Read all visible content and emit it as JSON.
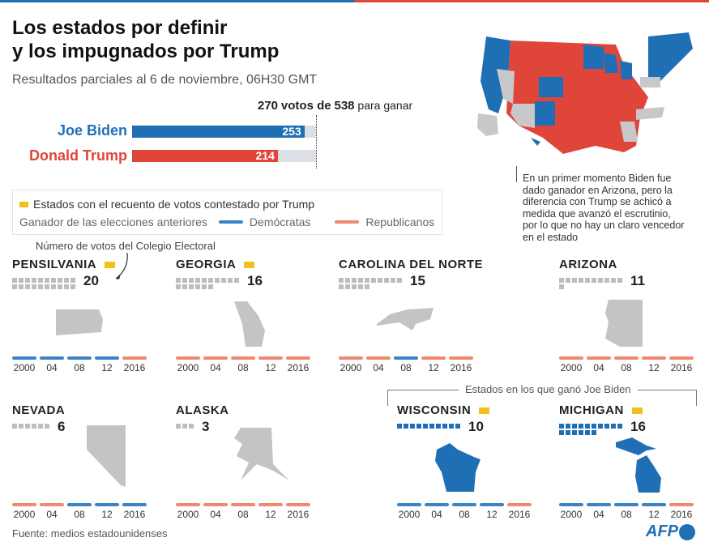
{
  "header": {
    "title_line1": "Los estados por definir",
    "title_line2": "y los impugnados por Trump",
    "subtitle": "Resultados parciales al 6 de noviembre, 06H30 GMT"
  },
  "chart_data": {
    "type": "bar",
    "title": "270 votos de 538 para ganar",
    "goal_number": "270",
    "goal_mid": "votos de",
    "goal_total": "538",
    "goal_suffix": "para ganar",
    "xlim": [
      0,
      270
    ],
    "categories": [
      "Joe Biden",
      "Donald Trump"
    ],
    "values": [
      253,
      214
    ],
    "value_labels": [
      "253",
      "214"
    ],
    "colors": [
      "#1f6fb5",
      "#e0453a"
    ]
  },
  "legend": {
    "contested": "Estados con el recuento de votos contestado por Trump",
    "previous_winner": "Ganador de las elecciones anteriores",
    "dem": "Demócratas",
    "rep": "Republicanos",
    "dem_color": "#3b84c4",
    "rep_color": "#ef8a70",
    "contested_color": "#f2c01a"
  },
  "electoral_note": "Número de votos del Colegio Electoral",
  "annotation": "En un primer momento Biden fue dado ganador en Arizona, pero la diferencia con Trump se achicó a medida que avanzó el escrutinio, por lo que no hay un claro vencedor en el estado",
  "biden_states_label": "Estados en los que ganó Joe Biden",
  "years": [
    "2000",
    "04",
    "08",
    "12",
    "2016"
  ],
  "states": [
    {
      "name": "Pensilvania",
      "votes": "20",
      "contested": true,
      "won_biden": false,
      "history": [
        "D",
        "D",
        "D",
        "D",
        "R"
      ]
    },
    {
      "name": "Georgia",
      "votes": "16",
      "contested": true,
      "won_biden": false,
      "history": [
        "R",
        "R",
        "R",
        "R",
        "R"
      ]
    },
    {
      "name": "Carolina del Norte",
      "votes": "15",
      "contested": false,
      "won_biden": false,
      "history": [
        "R",
        "R",
        "D",
        "R",
        "R"
      ]
    },
    {
      "name": "Arizona",
      "votes": "11",
      "contested": false,
      "won_biden": false,
      "history": [
        "R",
        "R",
        "R",
        "R",
        "R"
      ]
    },
    {
      "name": "Nevada",
      "votes": "6",
      "contested": false,
      "won_biden": false,
      "history": [
        "R",
        "R",
        "D",
        "D",
        "D"
      ]
    },
    {
      "name": "Alaska",
      "votes": "3",
      "contested": false,
      "won_biden": false,
      "history": [
        "R",
        "R",
        "R",
        "R",
        "R"
      ]
    },
    {
      "name": "Wisconsin",
      "votes": "10",
      "contested": true,
      "won_biden": true,
      "history": [
        "D",
        "D",
        "D",
        "D",
        "R"
      ]
    },
    {
      "name": "Michigan",
      "votes": "16",
      "contested": true,
      "won_biden": true,
      "history": [
        "D",
        "D",
        "D",
        "D",
        "R"
      ]
    }
  ],
  "footer": {
    "source": "Fuente: medios estadounidenses",
    "logo": "AFP"
  }
}
